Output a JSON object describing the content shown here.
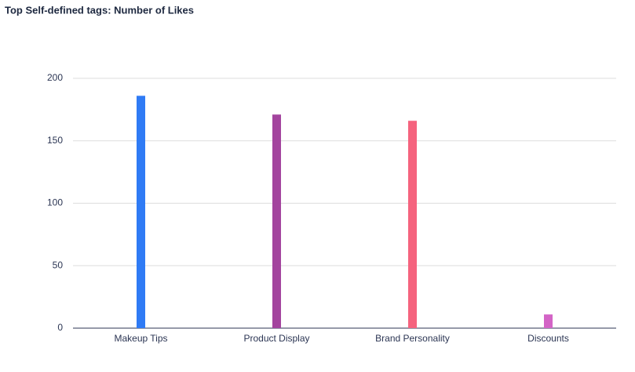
{
  "chart_data": {
    "type": "bar",
    "title": "Top Self-defined tags: Number of Likes",
    "categories": [
      "Makeup Tips",
      "Product Display",
      "Brand Personality",
      "Discounts"
    ],
    "values": [
      186,
      171,
      166,
      11
    ],
    "colors": [
      "#2f7bf5",
      "#a3449e",
      "#f5637e",
      "#d364c6"
    ],
    "ylim": [
      0,
      200
    ],
    "yticks": [
      0,
      50,
      100,
      150,
      200
    ],
    "grid": true
  }
}
